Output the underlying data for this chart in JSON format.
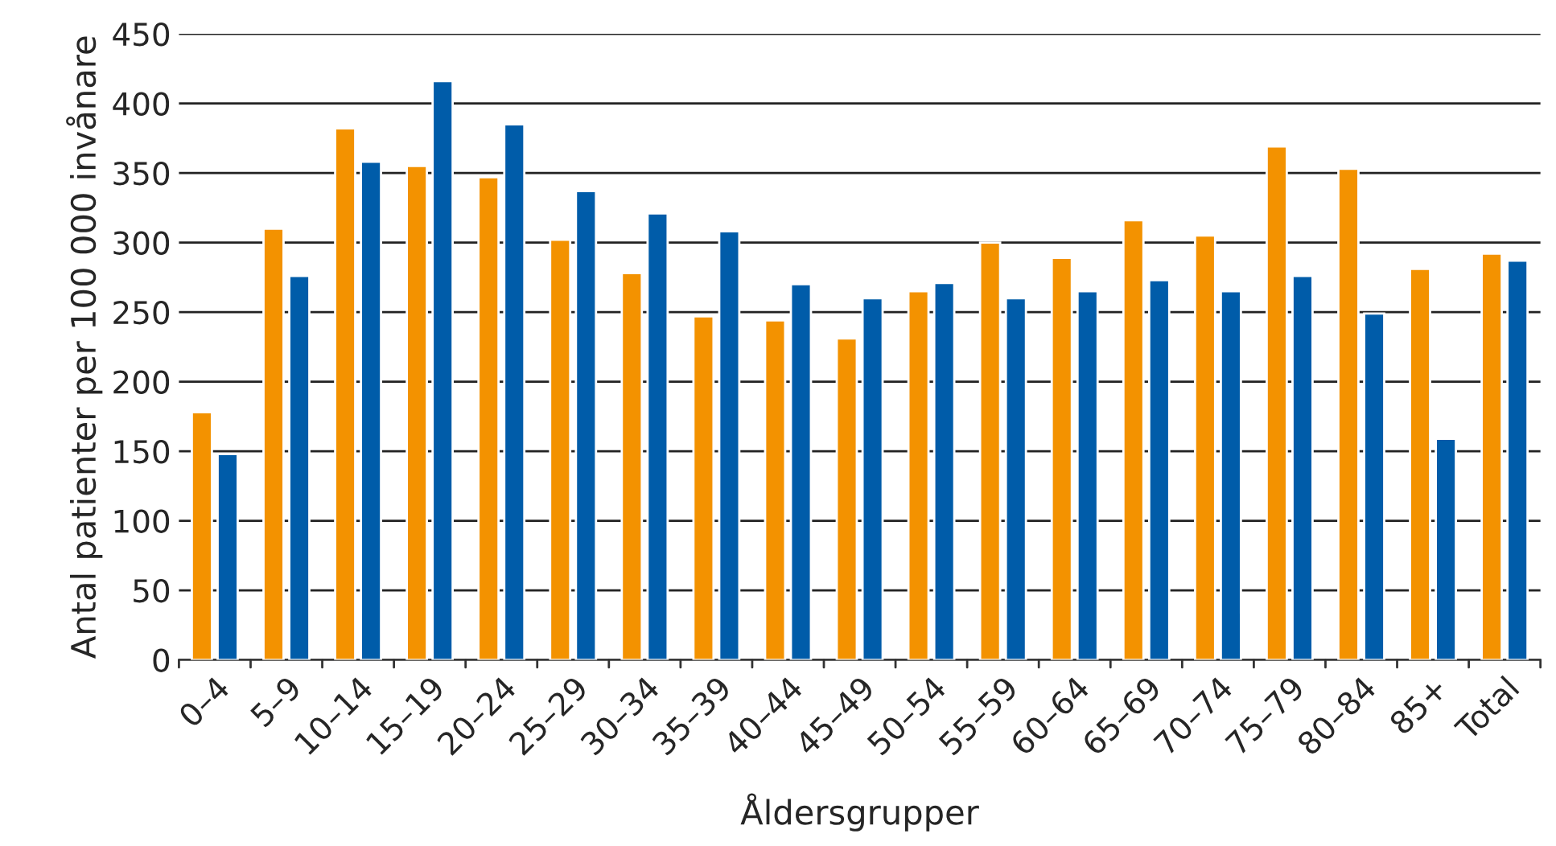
{
  "chart_data": {
    "type": "bar",
    "xlabel": "Åldersgrupper",
    "ylabel": "Antal patienter per 100 000 invånare",
    "categories": [
      "0–4",
      "5–9",
      "10–14",
      "15–19",
      "20–24",
      "25–29",
      "30–34",
      "35–39",
      "40–44",
      "45–49",
      "50–54",
      "55–59",
      "60–64",
      "65–69",
      "70–74",
      "75–79",
      "80–84",
      "85+",
      "Total"
    ],
    "series": [
      {
        "color": "#f39200",
        "values": [
          178,
          310,
          382,
          355,
          347,
          302,
          278,
          247,
          244,
          231,
          265,
          300,
          289,
          316,
          305,
          369,
          353,
          281,
          292
        ]
      },
      {
        "color": "#005ca9",
        "values": [
          148,
          276,
          358,
          416,
          385,
          337,
          321,
          308,
          270,
          260,
          271,
          260,
          265,
          273,
          265,
          276,
          249,
          159,
          287
        ]
      }
    ],
    "ylim": [
      0,
      450
    ],
    "yticks": [
      0,
      50,
      100,
      150,
      200,
      250,
      300,
      350,
      400,
      450
    ],
    "grid": "y",
    "legend": false
  }
}
